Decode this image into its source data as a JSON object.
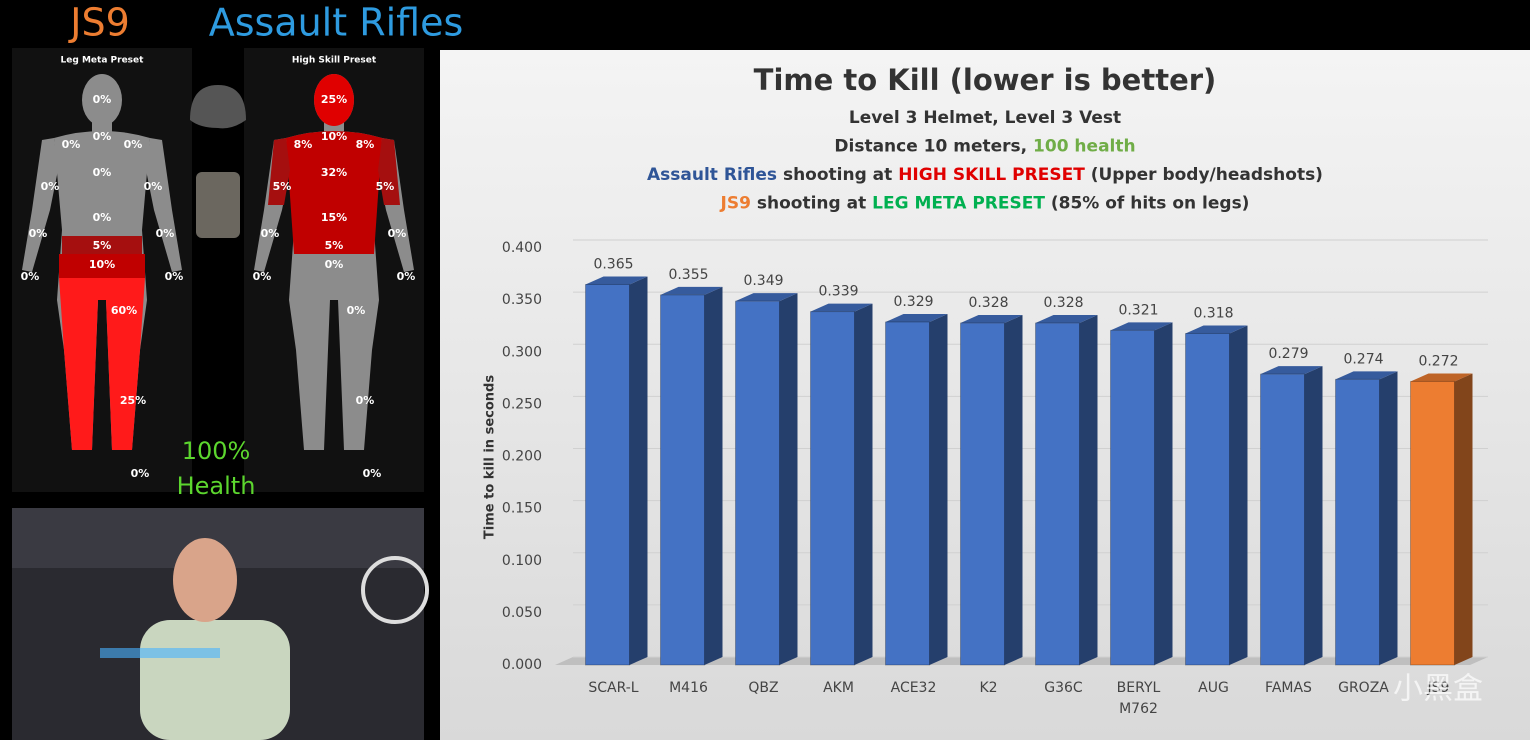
{
  "header": {
    "left": "JS9",
    "right": "Assault Rifles"
  },
  "figures": [
    {
      "title": "Leg Meta Preset",
      "regions": [
        "0%",
        "0%",
        "0%",
        "0%",
        "0%",
        "0%",
        "0%",
        "0%",
        "0%",
        "0%",
        "5%",
        "10%",
        "0%",
        "0%",
        "60%",
        "25%",
        "0%"
      ]
    },
    {
      "title": "High Skill Preset",
      "regions": [
        "25%",
        "10%",
        "8%",
        "8%",
        "32%",
        "5%",
        "5%",
        "15%",
        "0%",
        "0%",
        "5%",
        "0%",
        "0%",
        "0%",
        "0%",
        "0%",
        "0%"
      ]
    }
  ],
  "health": [
    "100%",
    "Health"
  ],
  "watermark": "小黑盒",
  "chart_data": {
    "type": "bar",
    "title": "Time to Kill (lower is better)",
    "subtitle": [
      [
        {
          "text": "Level 3 Helmet, Level 3 Vest",
          "color": "#333333"
        }
      ],
      [
        {
          "text": "Distance 10 meters, ",
          "color": "#333333"
        },
        {
          "text": "100 health",
          "color": "#70ad47"
        }
      ],
      [
        {
          "text": "Assault Rifles",
          "color": "#2f5597"
        },
        {
          "text": " shooting at ",
          "color": "#333333"
        },
        {
          "text": "HIGH SKILL PRESET",
          "color": "#e00000"
        },
        {
          "text": " (Upper body/headshots)",
          "color": "#333333"
        }
      ],
      [
        {
          "text": "JS9",
          "color": "#ed7d31"
        },
        {
          "text": " shooting at ",
          "color": "#333333"
        },
        {
          "text": "LEG META PRESET",
          "color": "#00b050"
        },
        {
          "text": " (85% of hits on legs)",
          "color": "#333333"
        }
      ]
    ],
    "y_label": "Time to kill in seconds",
    "categories": [
      "SCAR-L",
      "M416",
      "QBZ",
      "AKM",
      "ACE32",
      "K2",
      "G36C",
      "BERYL M762",
      "AUG",
      "FAMAS",
      "GROZA",
      "JS9"
    ],
    "values": [
      0.365,
      0.355,
      0.349,
      0.339,
      0.329,
      0.328,
      0.328,
      0.321,
      0.318,
      0.279,
      0.274,
      0.272
    ],
    "colors": [
      "#4472c4",
      "#4472c4",
      "#4472c4",
      "#4472c4",
      "#4472c4",
      "#4472c4",
      "#4472c4",
      "#4472c4",
      "#4472c4",
      "#4472c4",
      "#4472c4",
      "#ed7d31"
    ],
    "ylim": [
      0,
      0.4
    ],
    "yticks": [
      {
        "value": 0,
        "label": "0.000"
      },
      {
        "value": 0.05,
        "label": "0.050"
      },
      {
        "value": 0.1,
        "label": "0.100"
      },
      {
        "value": 0.15,
        "label": "0.150"
      },
      {
        "value": 0.2,
        "label": "0.200"
      },
      {
        "value": 0.25,
        "label": "0.250"
      },
      {
        "value": 0.3,
        "label": "0.300"
      },
      {
        "value": 0.35,
        "label": "0.350"
      },
      {
        "value": 0.4,
        "label": "0.400"
      }
    ],
    "grid": true
  }
}
